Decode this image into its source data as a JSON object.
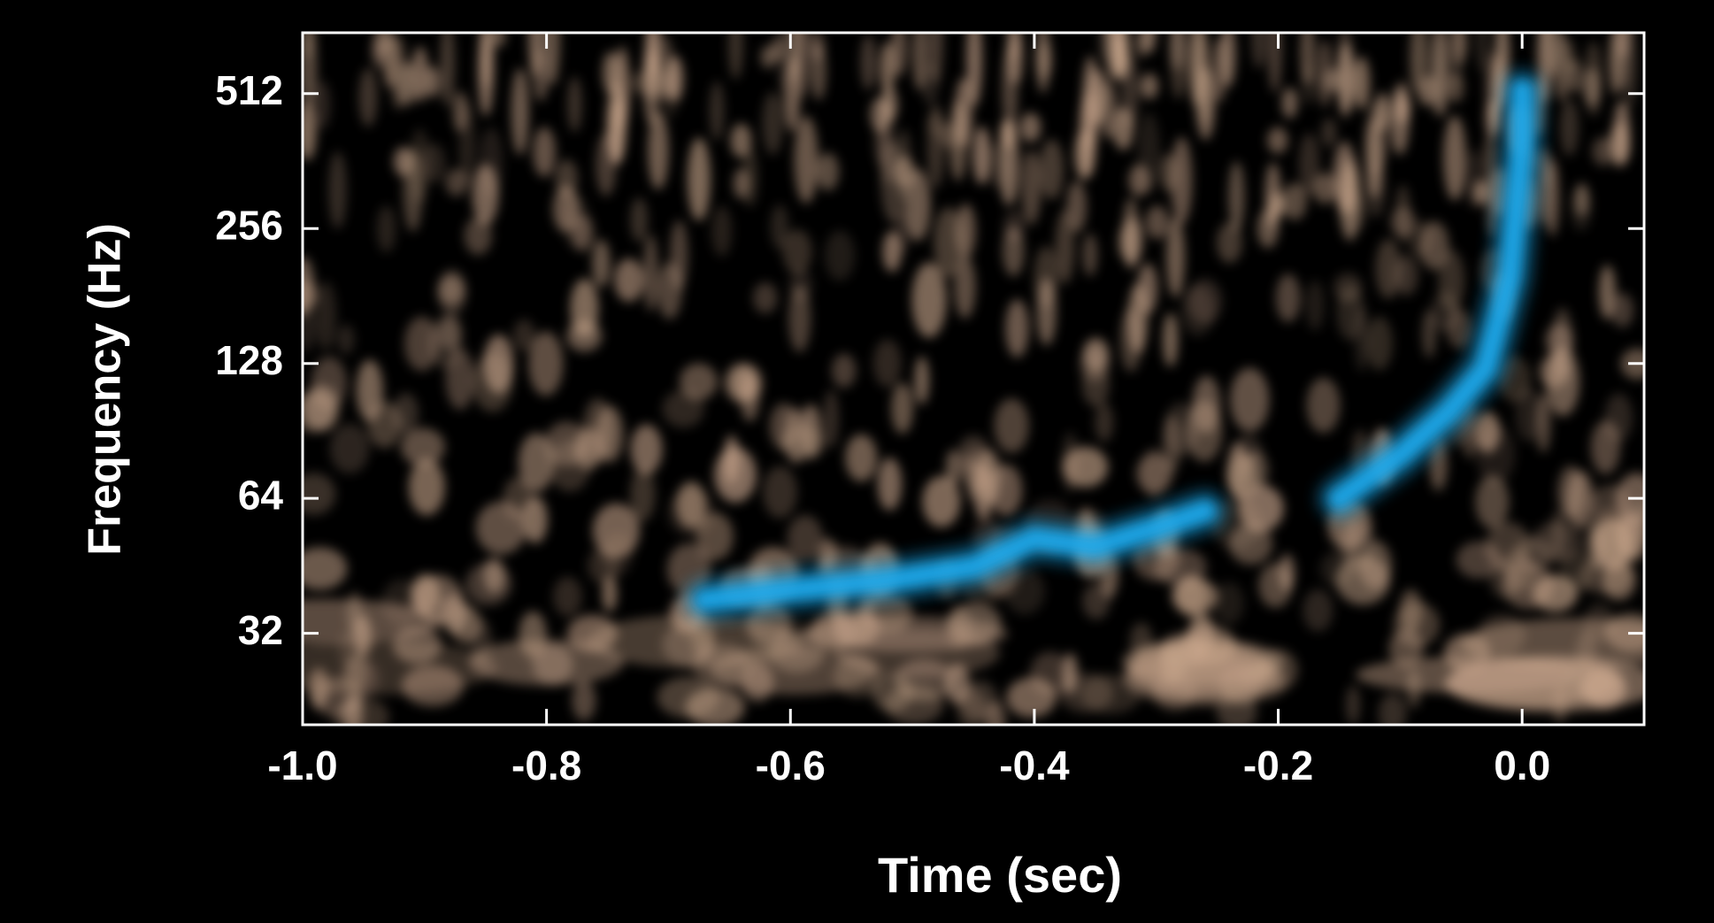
{
  "chart_data": {
    "type": "spectrogram",
    "x_label": "Time (sec)",
    "y_label": "Frequency (Hz)",
    "xlim": [
      -1.0,
      0.1
    ],
    "ylim": [
      20,
      700
    ],
    "y_log_base": 2,
    "xticks": [
      {
        "value": -1.0,
        "label": "-1.0"
      },
      {
        "value": -0.8,
        "label": "-0.8"
      },
      {
        "value": -0.6,
        "label": "-0.6"
      },
      {
        "value": -0.4,
        "label": "-0.4"
      },
      {
        "value": -0.2,
        "label": "-0.2"
      },
      {
        "value": 0.0,
        "label": "0.0"
      }
    ],
    "yticks": [
      32,
      64,
      128,
      256,
      512
    ],
    "x": [
      -0.67,
      -0.6,
      -0.52,
      -0.45,
      -0.4,
      -0.35,
      -0.3,
      -0.26,
      -0.2,
      -0.15,
      -0.1,
      -0.06,
      -0.03,
      -0.01,
      0.0,
      0.0
    ],
    "values": [
      38,
      40,
      42,
      45,
      52,
      50,
      55,
      60,
      null,
      64,
      80,
      100,
      125,
      200,
      400,
      520
    ],
    "color": "#1fa8ea",
    "noise_color": "#c9a68c"
  }
}
